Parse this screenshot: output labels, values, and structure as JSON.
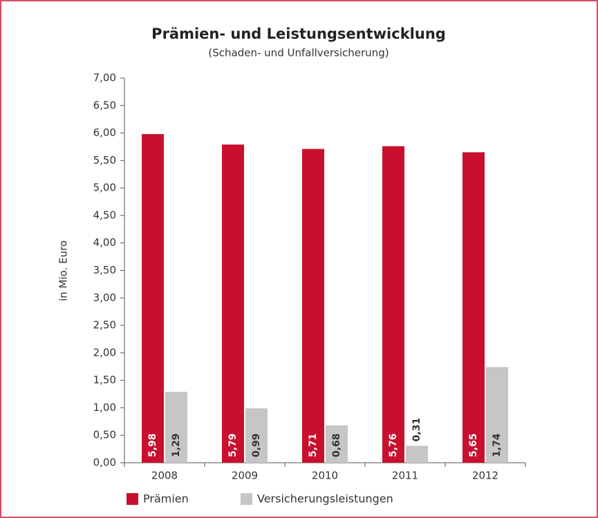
{
  "chart_data": {
    "type": "bar",
    "title": "Prämien- und Leistungsentwicklung",
    "subtitle": "(Schaden- und Unfallversicherung)",
    "y_label": "in Mio. Euro",
    "categories": [
      "2008",
      "2009",
      "2010",
      "2011",
      "2012"
    ],
    "series": [
      {
        "name": "Prämien",
        "color": "#c8102e",
        "values": [
          5.98,
          5.79,
          5.71,
          5.76,
          5.65
        ],
        "value_labels": [
          "5,98",
          "5,79",
          "5,71",
          "5,76",
          "5,65"
        ]
      },
      {
        "name": "Versicherungsleistungen",
        "color": "#c6c6c6",
        "values": [
          1.29,
          0.99,
          0.68,
          0.31,
          1.74
        ],
        "value_labels": [
          "1,29",
          "0,99",
          "0,68",
          "0,31",
          "1,74"
        ]
      }
    ],
    "ylim": [
      0,
      7
    ],
    "yticks": [
      {
        "value": 0,
        "label": "0,00"
      },
      {
        "value": 0.5,
        "label": "0,50"
      },
      {
        "value": 1,
        "label": "1,00"
      },
      {
        "value": 1.5,
        "label": "1,50"
      },
      {
        "value": 2,
        "label": "2,00"
      },
      {
        "value": 2.5,
        "label": "2,50"
      },
      {
        "value": 3,
        "label": "3,00"
      },
      {
        "value": 3.5,
        "label": "3,50"
      },
      {
        "value": 4,
        "label": "4,00"
      },
      {
        "value": 4.5,
        "label": "4,50"
      },
      {
        "value": 5,
        "label": "5,00"
      },
      {
        "value": 5.5,
        "label": "5,50"
      },
      {
        "value": 6,
        "label": "6,00"
      },
      {
        "value": 6.5,
        "label": "6,50"
      },
      {
        "value": 7,
        "label": "7,00"
      }
    ],
    "legend": "bottom"
  }
}
